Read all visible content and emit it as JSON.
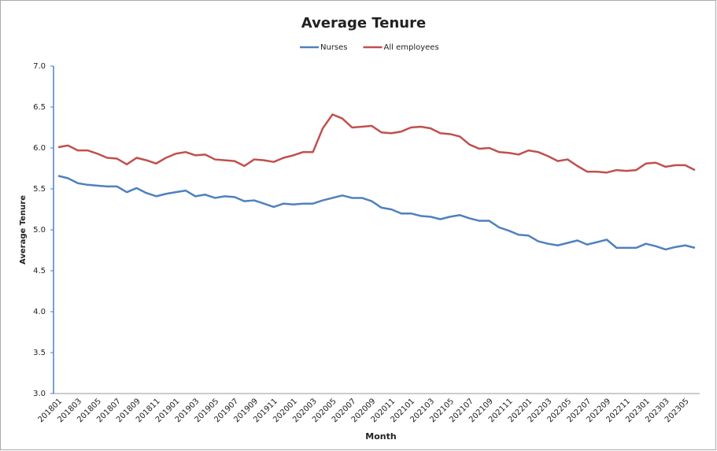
{
  "chart_data": {
    "type": "line",
    "title": "Average Tenure",
    "x_label": "Month",
    "y_label": "Average Tenure",
    "categories": [
      "201801",
      null,
      "201803",
      null,
      "201805",
      null,
      "201807",
      null,
      "201809",
      null,
      "201811",
      null,
      "201901",
      null,
      "201903",
      null,
      "201905",
      null,
      "201907",
      null,
      "201909",
      null,
      "201911",
      null,
      "202001",
      null,
      "202003",
      null,
      "202005",
      null,
      "202007",
      null,
      "202009",
      null,
      "202011",
      null,
      "202101",
      null,
      "202103",
      null,
      "202105",
      null,
      "202107",
      null,
      "202109",
      null,
      "202111",
      null,
      "202201",
      null,
      "202203",
      null,
      "202205",
      null,
      "202207",
      null,
      "202209",
      null,
      "202211",
      null,
      "202301",
      null,
      "202303",
      null,
      "202305",
      null
    ],
    "series": [
      {
        "name": "Nurses",
        "color": "#4f81bd",
        "values": [
          5.66,
          5.63,
          5.57,
          5.55,
          5.54,
          5.53,
          5.53,
          5.46,
          5.51,
          5.45,
          5.41,
          5.44,
          5.46,
          5.48,
          5.41,
          5.43,
          5.39,
          5.41,
          5.4,
          5.35,
          5.36,
          5.32,
          5.28,
          5.32,
          5.31,
          5.32,
          5.32,
          5.36,
          5.39,
          5.42,
          5.39,
          5.39,
          5.35,
          5.27,
          5.25,
          5.2,
          5.2,
          5.17,
          5.16,
          5.13,
          5.16,
          5.18,
          5.14,
          5.11,
          5.11,
          5.03,
          4.99,
          4.94,
          4.93,
          4.86,
          4.83,
          4.81,
          4.84,
          4.87,
          4.82,
          4.85,
          4.88,
          4.78,
          4.78,
          4.78,
          4.83,
          4.8,
          4.76,
          4.79,
          4.81,
          4.78
        ]
      },
      {
        "name": "All employees",
        "color": "#c0504d",
        "values": [
          6.01,
          6.03,
          5.97,
          5.97,
          5.93,
          5.88,
          5.87,
          5.8,
          5.88,
          5.85,
          5.81,
          5.88,
          5.93,
          5.95,
          5.91,
          5.92,
          5.86,
          5.85,
          5.84,
          5.78,
          5.86,
          5.85,
          5.83,
          5.88,
          5.91,
          5.95,
          5.95,
          6.24,
          6.41,
          6.36,
          6.25,
          6.26,
          6.27,
          6.19,
          6.18,
          6.2,
          6.25,
          6.26,
          6.24,
          6.18,
          6.17,
          6.14,
          6.04,
          5.99,
          6.0,
          5.95,
          5.94,
          5.92,
          5.97,
          5.95,
          5.9,
          5.84,
          5.86,
          5.78,
          5.71,
          5.71,
          5.7,
          5.73,
          5.72,
          5.73,
          5.81,
          5.82,
          5.77,
          5.79,
          5.79,
          5.73
        ]
      }
    ],
    "ylim": [
      3,
      7
    ],
    "yticks": [
      {
        "value": 3,
        "label": "3.0"
      },
      {
        "value": 3.5,
        "label": "3.5"
      },
      {
        "value": 4,
        "label": "4.0"
      },
      {
        "value": 4.5,
        "label": "4.5"
      },
      {
        "value": 5,
        "label": "5.0"
      },
      {
        "value": 5.5,
        "label": "5.5"
      },
      {
        "value": 6,
        "label": "6.0"
      },
      {
        "value": 6.5,
        "label": "6.5"
      },
      {
        "value": 7,
        "label": "7.0"
      }
    ],
    "grid": false,
    "legend": "top"
  }
}
